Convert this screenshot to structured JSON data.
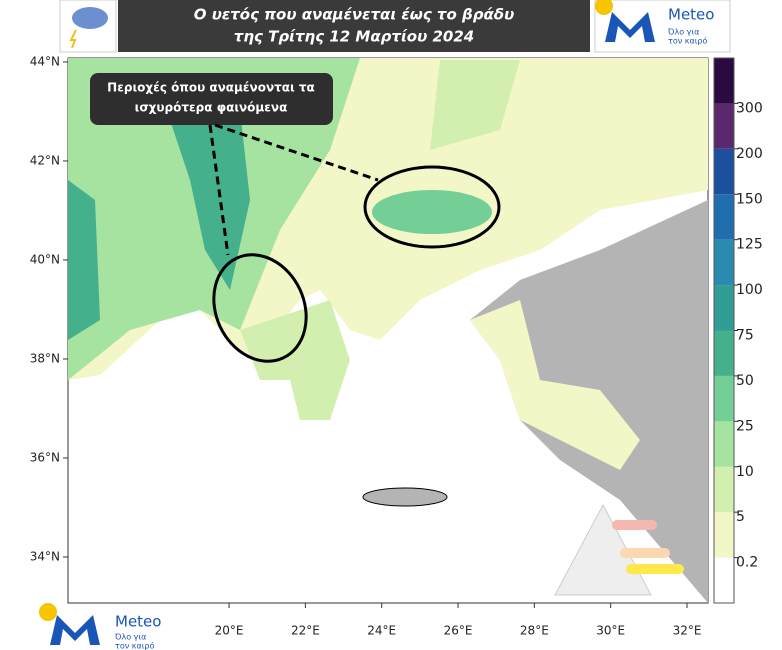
{
  "header": {
    "title_lines": [
      "Ο υετός που αναμένεται έως το βράδυ",
      "της Τρίτης 12 Μαρτίου 2024"
    ]
  },
  "logo": {
    "brand": "Meteo",
    "tagline_lines": [
      "Όλο για",
      "τον καιρό"
    ]
  },
  "map": {
    "annotation_lines": [
      "Περιοχές όπου αναμένονται τα",
      "ισχυρότερα φαινόμενα"
    ],
    "xlim": [
      15.78,
      32.55
    ],
    "ylim": [
      33.07,
      44.08
    ],
    "lat_ticks": [
      {
        "value": 44,
        "label": "44°N"
      },
      {
        "value": 42,
        "label": "42°N"
      },
      {
        "value": 40,
        "label": "40°N"
      },
      {
        "value": 38,
        "label": "38°N"
      },
      {
        "value": 36,
        "label": "36°N"
      },
      {
        "value": 34,
        "label": "34°N"
      }
    ],
    "lon_ticks": [
      {
        "value": 20,
        "label": "20°E"
      },
      {
        "value": 22,
        "label": "22°E"
      },
      {
        "value": 24,
        "label": "24°E"
      },
      {
        "value": 26,
        "label": "26°E"
      },
      {
        "value": 28,
        "label": "28°E"
      },
      {
        "value": 30,
        "label": "30°E"
      },
      {
        "value": 32,
        "label": "32°E"
      }
    ]
  },
  "colorbar": {
    "ticks": [
      0.2,
      5,
      10,
      25,
      50,
      75,
      100,
      125,
      150,
      200,
      300
    ],
    "colors": [
      "#ffffff",
      "#f3f6c6",
      "#d3efb0",
      "#a6e2a0",
      "#74cf96",
      "#45b08c",
      "#2f9c96",
      "#2a8ab0",
      "#1f6fae",
      "#1c4f9c",
      "#5b2a6e",
      "#2a0a40"
    ]
  }
}
